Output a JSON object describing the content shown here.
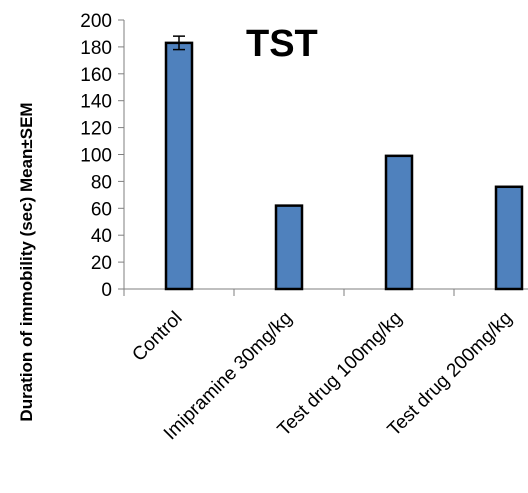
{
  "chart_data": {
    "type": "bar",
    "title": "TST",
    "xlabel": "",
    "ylabel": "Duration of immobility (sec) Mean±SEM",
    "ylim": [
      0,
      200
    ],
    "yticks": [
      0,
      20,
      40,
      60,
      80,
      100,
      120,
      140,
      160,
      180,
      200
    ],
    "categories": [
      "Control",
      "Imipramine 30mg/kg",
      "Test drug 100mg/kg",
      "Test drug 200mg/kg"
    ],
    "values": [
      183,
      62,
      99,
      76
    ],
    "errors": [
      5,
      null,
      null,
      null
    ],
    "bar_color": "#4F81BD",
    "bar_edge_color": "#000000",
    "grid": false,
    "legend": "none"
  }
}
